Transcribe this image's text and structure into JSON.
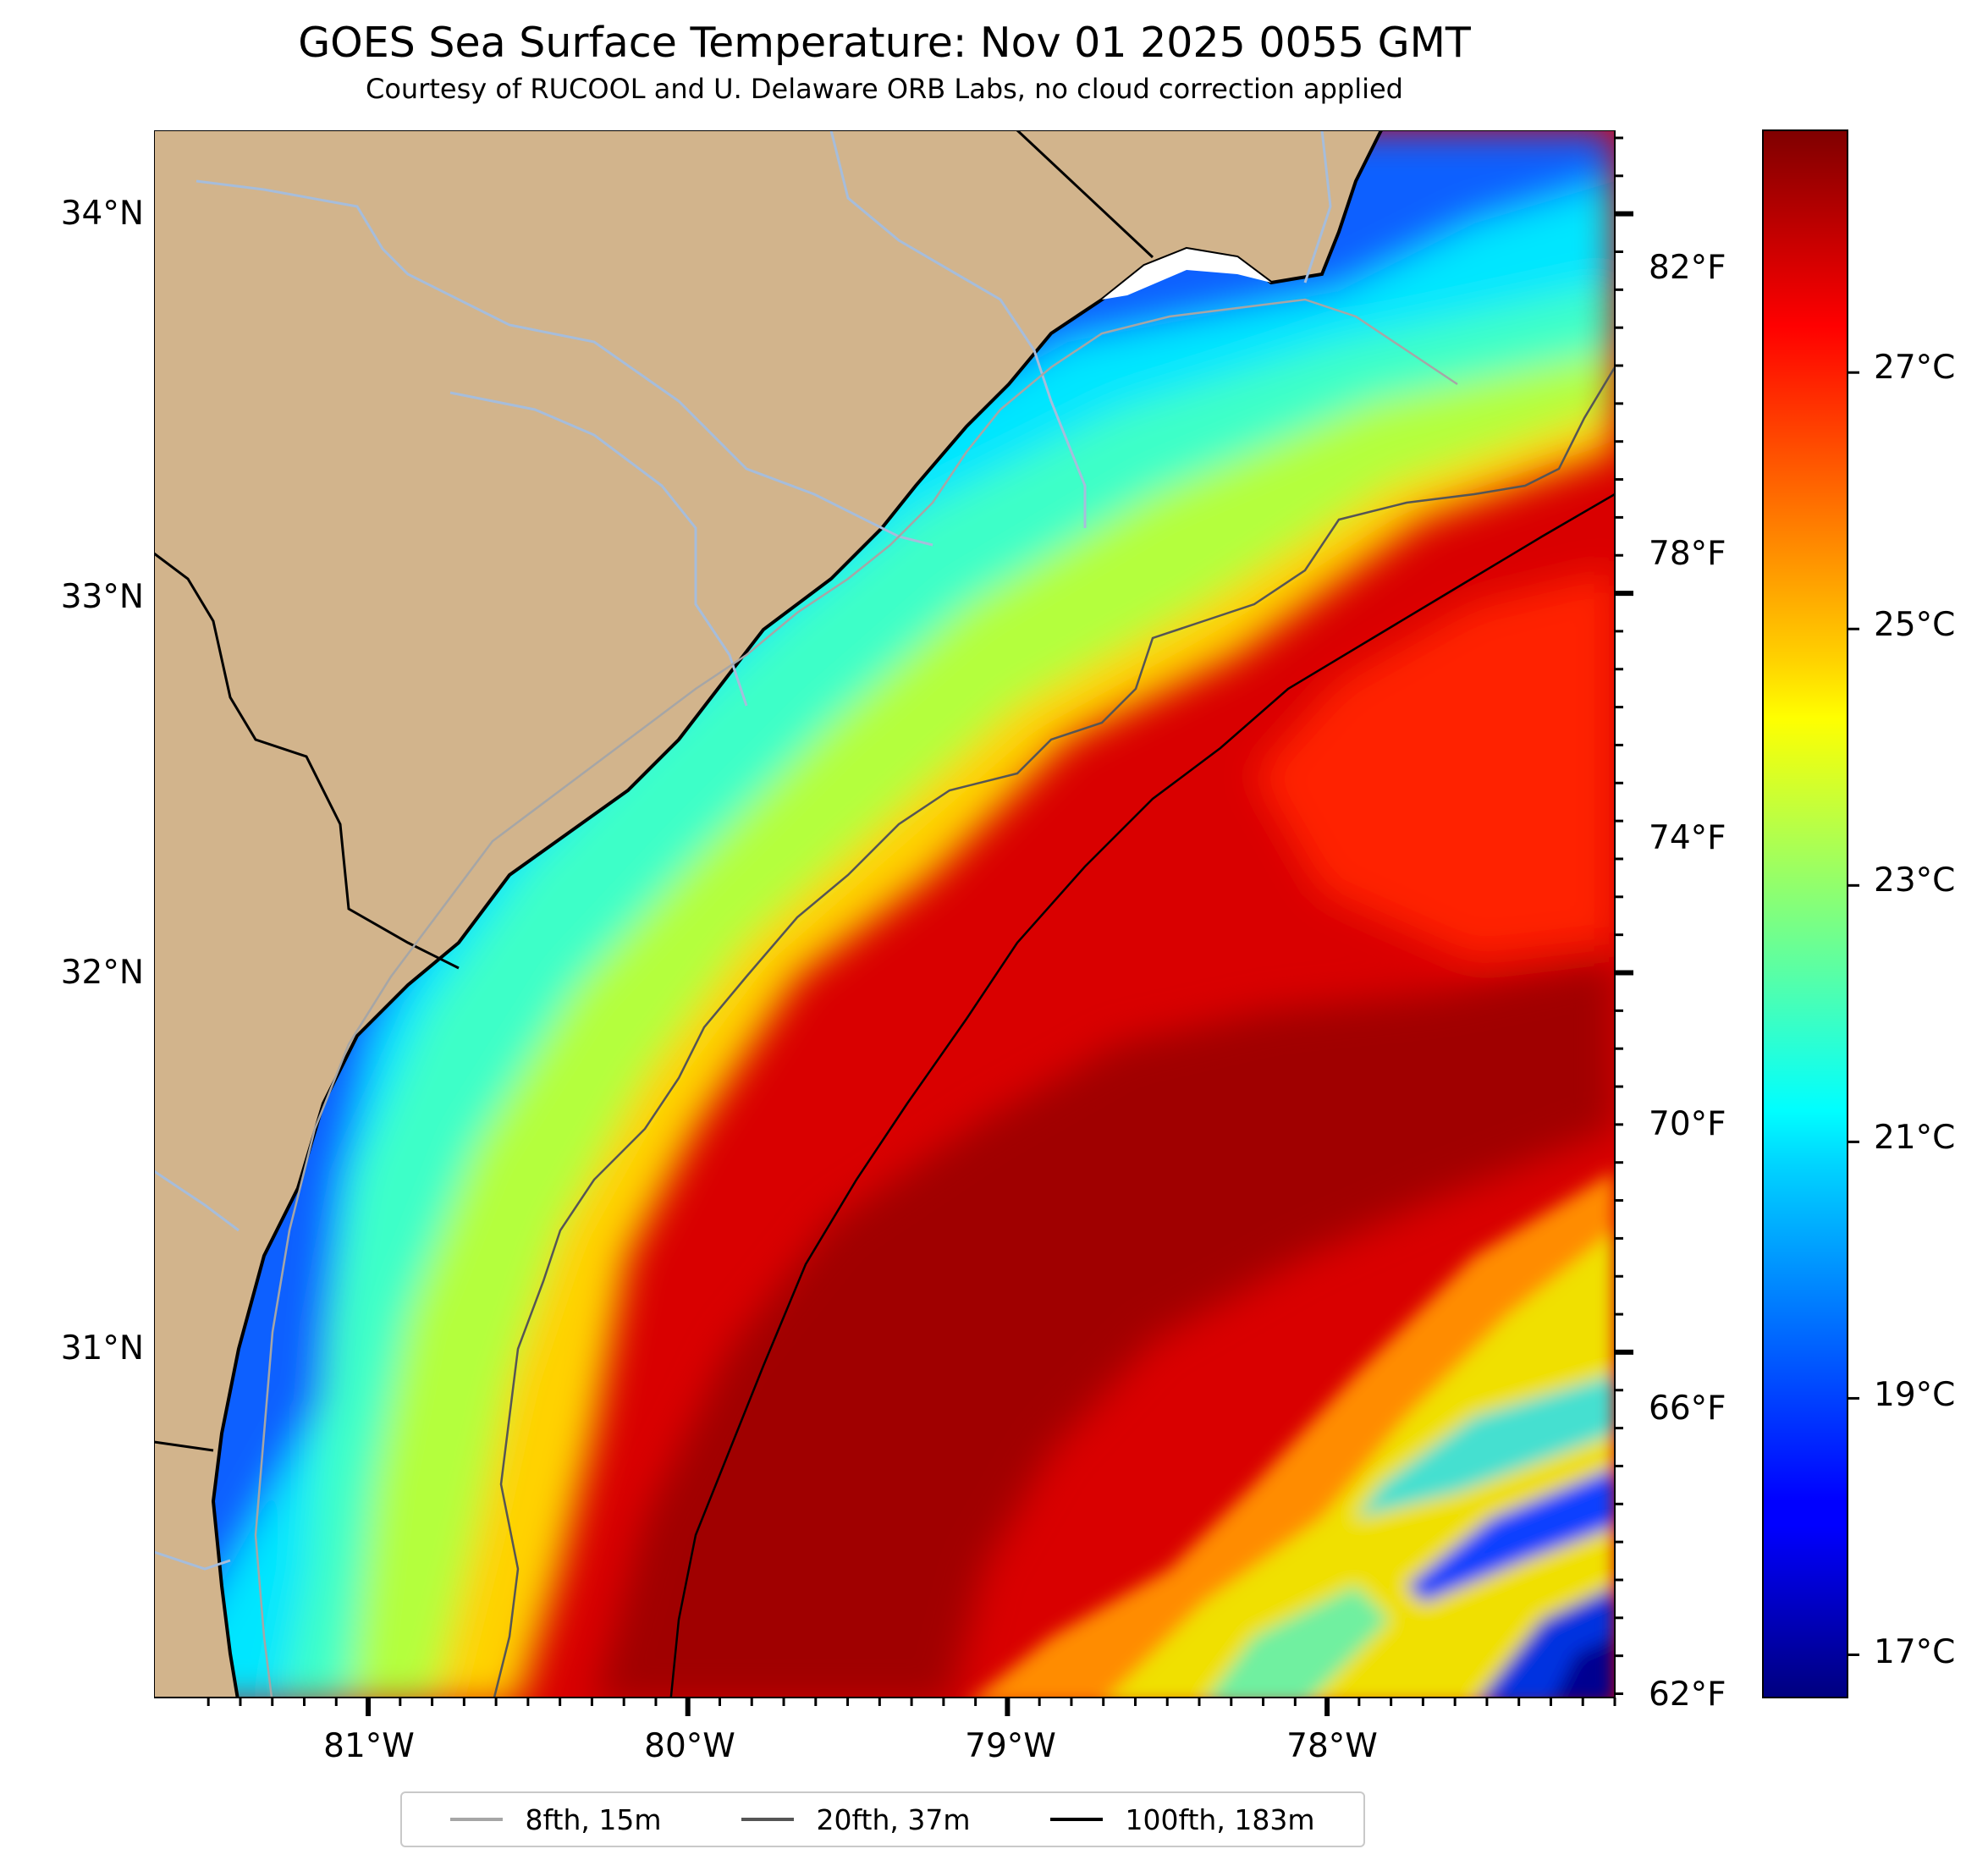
{
  "title": "GOES Sea Surface Temperature: Nov 01 2025 0055 GMT",
  "subtitle": "Courtesy of RUCOOL and U. Delaware ORB Labs, no cloud correction applied",
  "lon_range": [
    -81.67,
    -77.1
  ],
  "lat_range": [
    30.09,
    34.22
  ],
  "lon_ticks": [
    "81°W",
    "80°W",
    "79°W",
    "78°W"
  ],
  "lat_ticks": [
    "34°N",
    "33°N",
    "32°N",
    "31°N"
  ],
  "colorbar": {
    "celsius_ticks": [
      "27°C",
      "25°C",
      "23°C",
      "21°C",
      "19°C",
      "17°C"
    ],
    "fahrenheit_ticks": [
      "82°F",
      "78°F",
      "74°F",
      "70°F",
      "66°F",
      "62°F"
    ],
    "range_f": [
      62,
      84
    ],
    "colormap": "jet"
  },
  "legend": [
    {
      "label": "8fth, 15m",
      "color": "#a6a6a6"
    },
    {
      "label": "20fth, 37m",
      "color": "#555555"
    },
    {
      "label": "100fth, 183m",
      "color": "#000000"
    }
  ],
  "colors": {
    "land": "#d2b48c",
    "river": "#a6bddb",
    "coastline": "#000000",
    "no_data": "#ffffff"
  }
}
